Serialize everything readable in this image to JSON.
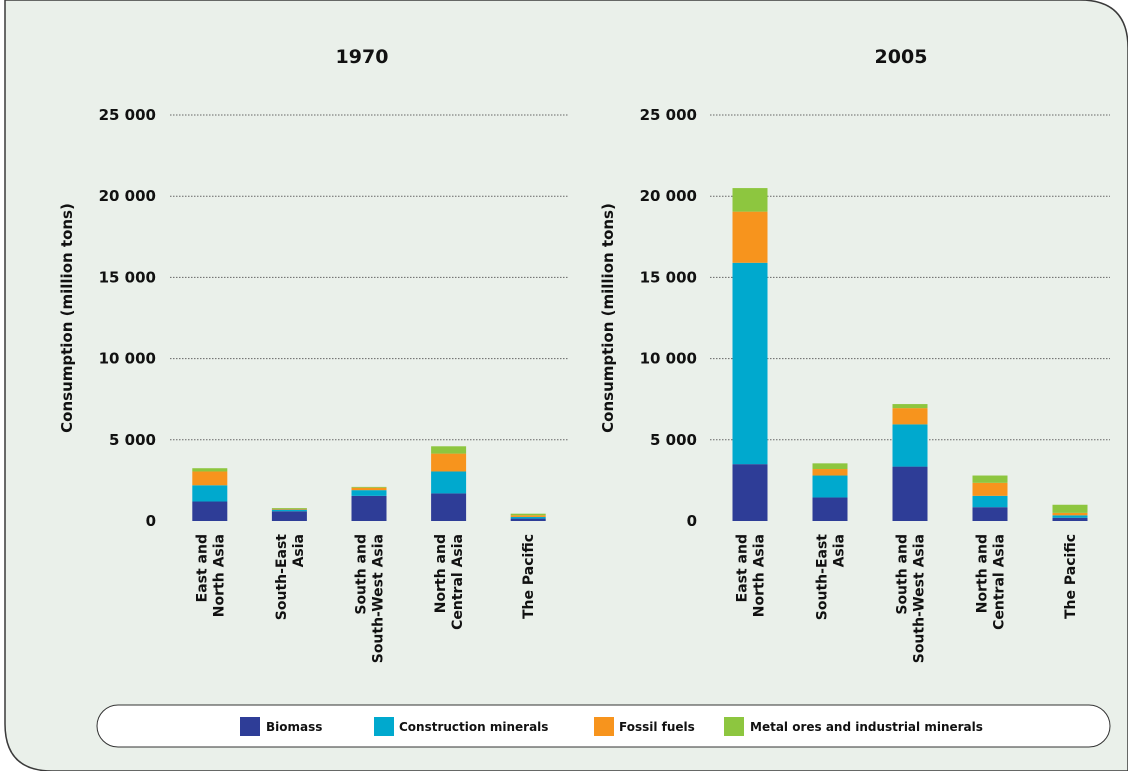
{
  "chart_data": [
    {
      "type": "bar",
      "stacked": true,
      "title": "1970",
      "ylabel": "Consumption (million tons)",
      "ylim": [
        0,
        25000
      ],
      "yticks": [
        "0",
        "5 000",
        "10 000",
        "15 000",
        "20 000",
        "25 000"
      ],
      "categories": [
        [
          "East and",
          "North Asia"
        ],
        [
          "South-East",
          "Asia"
        ],
        [
          "South and",
          "South-West Asia"
        ],
        [
          "North and",
          "Central Asia"
        ],
        [
          "The Pacific"
        ]
      ],
      "series": [
        {
          "name": "Biomass",
          "values": [
            1200,
            600,
            1550,
            1700,
            150
          ]
        },
        {
          "name": "Construction minerals",
          "values": [
            1000,
            100,
            350,
            1350,
            100
          ]
        },
        {
          "name": "Fossil fuels",
          "values": [
            850,
            50,
            150,
            1100,
            100
          ]
        },
        {
          "name": "Metal ores and industrial minerals",
          "values": [
            200,
            50,
            50,
            450,
            100
          ]
        }
      ],
      "grid": true
    },
    {
      "type": "bar",
      "stacked": true,
      "title": "2005",
      "ylabel": "Consumption (million tons)",
      "ylim": [
        0,
        25000
      ],
      "yticks": [
        "0",
        "5 000",
        "10 000",
        "15 000",
        "20 000",
        "25 000"
      ],
      "categories": [
        [
          "East and",
          "North Asia"
        ],
        [
          "South-East",
          "Asia"
        ],
        [
          "South and",
          "South-West Asia"
        ],
        [
          "North and",
          "Central Asia"
        ],
        [
          "The Pacific"
        ]
      ],
      "series": [
        {
          "name": "Biomass",
          "values": [
            3500,
            1450,
            3350,
            850,
            200
          ]
        },
        {
          "name": "Construction minerals",
          "values": [
            12400,
            1350,
            2600,
            700,
            150
          ]
        },
        {
          "name": "Fossil fuels",
          "values": [
            3150,
            400,
            1000,
            800,
            150
          ]
        },
        {
          "name": "Metal ores and industrial minerals",
          "values": [
            1450,
            350,
            250,
            450,
            500
          ]
        }
      ],
      "grid": true
    }
  ],
  "legend": {
    "placement": "bottom",
    "items": [
      {
        "label": "Biomass",
        "color": "#2e3d97"
      },
      {
        "label": "Construction minerals",
        "color": "#00a9ce"
      },
      {
        "label": "Fossil fuels",
        "color": "#f7941d"
      },
      {
        "label": "Metal ores and industrial minerals",
        "color": "#8dc63f"
      }
    ]
  },
  "colors": {
    "panel_background": "#eaf0ea",
    "frame": "#3a3a3a",
    "gridline": "#666666"
  }
}
